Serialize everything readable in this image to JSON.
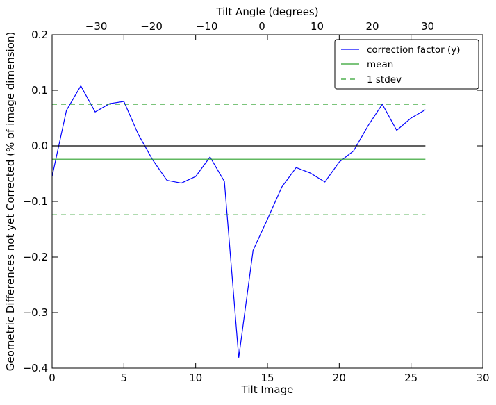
{
  "chart_data": {
    "type": "line",
    "title": "",
    "xlabel": "Tilt Image",
    "ylabel": "Geometric Differences not yet Corrected (% of image dimension)",
    "top_xlabel": "Tilt Angle (degrees)",
    "xlim": [
      0,
      30
    ],
    "ylim": [
      -0.4,
      0.2
    ],
    "top_xlim": [
      -38,
      40
    ],
    "x_ticks": [
      0,
      5,
      10,
      15,
      20,
      25,
      30
    ],
    "x_tick_labels": [
      "0",
      "5",
      "10",
      "15",
      "20",
      "25",
      "30"
    ],
    "y_ticks": [
      0.2,
      0.1,
      0.0,
      -0.1,
      -0.2,
      -0.3,
      -0.4
    ],
    "y_tick_labels": [
      "0.2",
      "0.1",
      "0.0",
      "−0.1",
      "−0.2",
      "−0.3",
      "−0.4"
    ],
    "top_x_ticks": [
      -30,
      -20,
      -10,
      0,
      10,
      20,
      30
    ],
    "top_x_tick_labels": [
      "−30",
      "−20",
      "−10",
      "0",
      "10",
      "20",
      "30"
    ],
    "grid": false,
    "legend_position": "top-right",
    "series": [
      {
        "name": "correction factor (y)",
        "color": "#0000ff",
        "style": "solid",
        "x": [
          0,
          1,
          2,
          3,
          4,
          5,
          6,
          7,
          8,
          9,
          10,
          11,
          12,
          13,
          14,
          15,
          16,
          17,
          18,
          19,
          20,
          21,
          22,
          23,
          24,
          25,
          26
        ],
        "y": [
          -0.055,
          0.064,
          0.108,
          0.061,
          0.076,
          0.08,
          0.021,
          -0.025,
          -0.062,
          -0.067,
          -0.055,
          -0.02,
          -0.064,
          -0.381,
          -0.188,
          -0.132,
          -0.074,
          -0.039,
          -0.049,
          -0.065,
          -0.029,
          -0.009,
          0.036,
          0.075,
          0.028,
          0.05,
          0.065
        ]
      },
      {
        "name": "mean",
        "color": "#2ca02c",
        "style": "solid",
        "x": [
          0,
          26
        ],
        "y": [
          -0.024,
          -0.024
        ]
      },
      {
        "name": "1 stdev",
        "color": "#2ca02c",
        "style": "dashed",
        "x": [
          0,
          26
        ],
        "y": [
          0.075,
          0.075
        ]
      },
      {
        "name": "1 stdev",
        "color": "#2ca02c",
        "style": "dashed",
        "x": [
          0,
          26
        ],
        "y": [
          -0.124,
          -0.124
        ]
      },
      {
        "name": "",
        "color": "#000000",
        "style": "solid",
        "x": [
          0,
          26
        ],
        "y": [
          0.0,
          0.0
        ]
      }
    ],
    "legend": [
      {
        "label": "correction factor (y)",
        "color": "#0000ff",
        "style": "solid"
      },
      {
        "label": "mean",
        "color": "#2ca02c",
        "style": "solid"
      },
      {
        "label": "1 stdev",
        "color": "#2ca02c",
        "style": "dashed"
      }
    ]
  }
}
